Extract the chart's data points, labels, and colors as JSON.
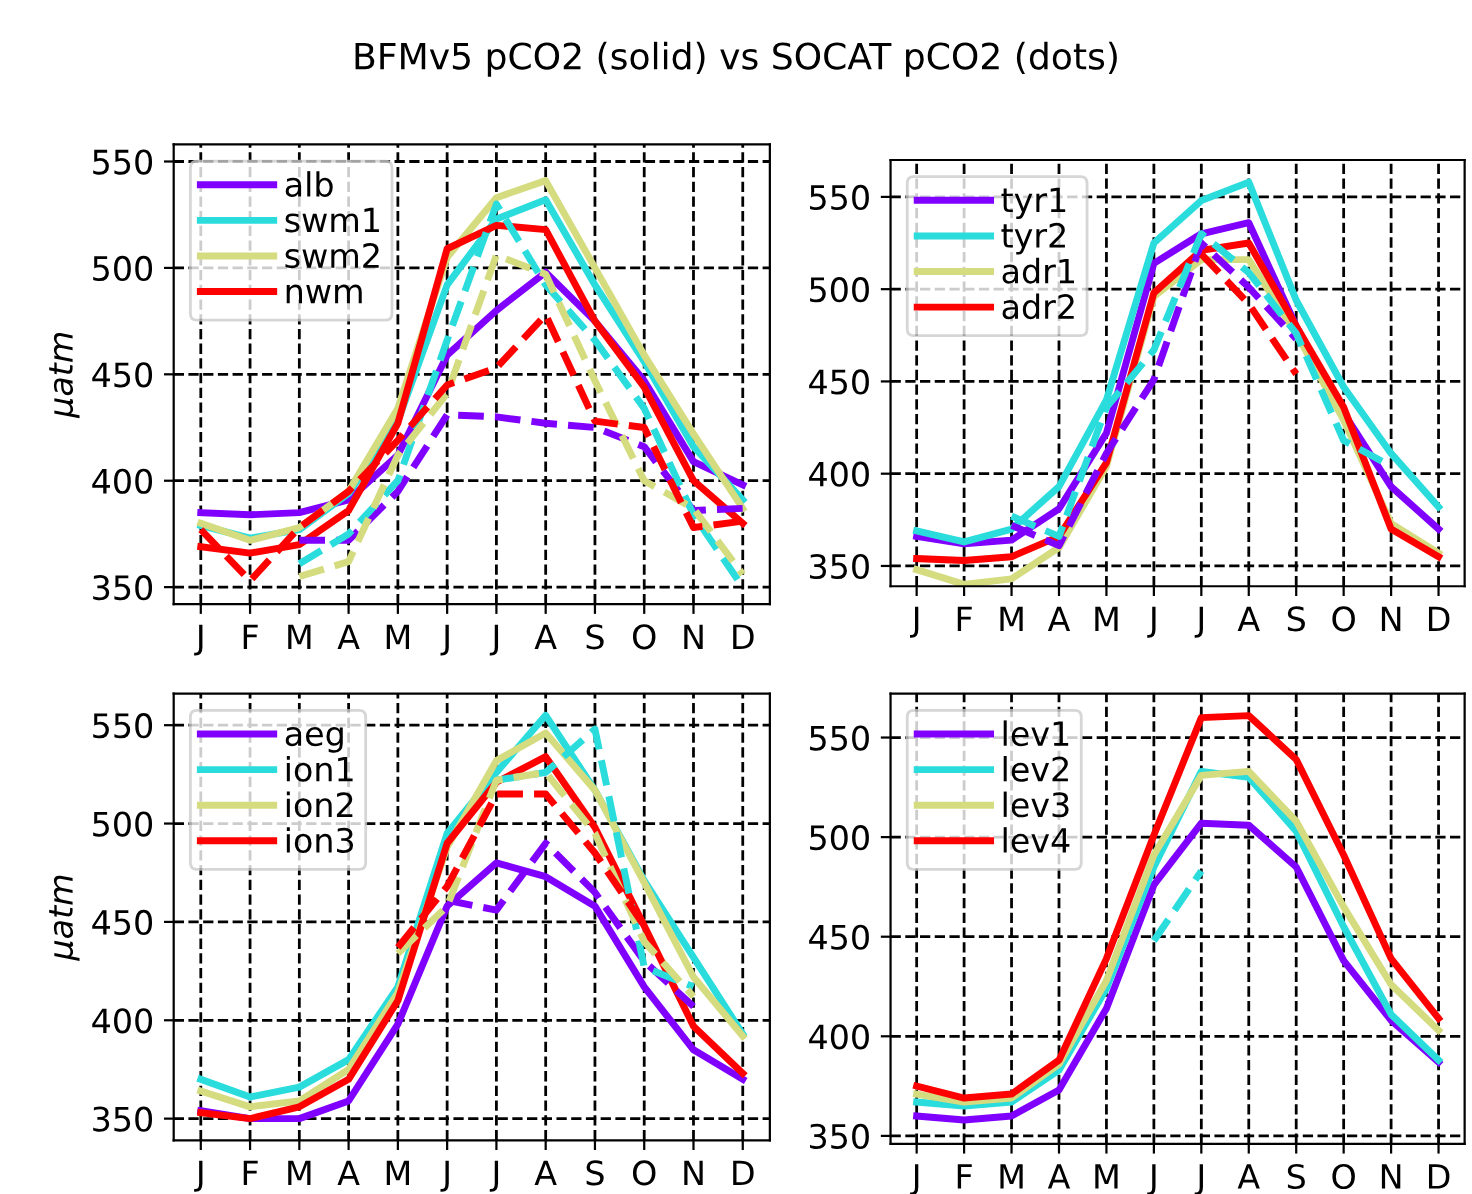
{
  "chart_data": [
    {
      "type": "line",
      "title": "BFMv5 pCO2 (solid) vs SOCAT pCO2 (dots)",
      "ylabel": "μatm",
      "categories": [
        "J",
        "F",
        "M",
        "A",
        "M",
        "J",
        "J",
        "A",
        "S",
        "O",
        "N",
        "D"
      ],
      "ylim": [
        342,
        558
      ],
      "yticks": [
        350,
        400,
        450,
        500,
        550
      ],
      "grid": true,
      "legend": "top left",
      "series": [
        {
          "name": "alb",
          "color": "#8000ff",
          "line_style": "solid",
          "values": [
            385,
            384,
            385,
            391,
            412,
            459,
            480,
            498,
            475,
            447,
            409,
            398
          ]
        },
        {
          "name": "swm1",
          "color": "#2adcdc",
          "line_style": "solid",
          "values": [
            379,
            373,
            377,
            394,
            428,
            492,
            523,
            532,
            492,
            456,
            416,
            391
          ]
        },
        {
          "name": "swm2",
          "color": "#d4dc7f",
          "line_style": "solid",
          "values": [
            380,
            372,
            378,
            395,
            434,
            505,
            533,
            541,
            500,
            459,
            422,
            387
          ]
        },
        {
          "name": "nwm",
          "color": "#ff0000",
          "line_style": "solid",
          "values": [
            369,
            366,
            370,
            386,
            427,
            509,
            520,
            518,
            475,
            444,
            400,
            380
          ]
        },
        {
          "color": "#8000ff",
          "line_style": "dashed",
          "values": [
            null,
            null,
            372,
            372,
            395,
            431,
            430,
            427,
            425,
            416,
            386,
            387
          ]
        },
        {
          "color": "#2adcdc",
          "line_style": "dashed",
          "values": [
            null,
            null,
            361,
            375,
            400,
            466,
            530,
            492,
            466,
            434,
            384,
            350
          ]
        },
        {
          "color": "#d4dc7f",
          "line_style": "dashed",
          "values": [
            null,
            null,
            355,
            362,
            412,
            441,
            506,
            497,
            447,
            400,
            387,
            356
          ]
        },
        {
          "color": "#ff0000",
          "line_style": "dashed",
          "values": [
            377,
            353,
            378,
            395,
            419,
            445,
            453,
            478,
            428,
            425,
            378,
            381
          ]
        }
      ]
    },
    {
      "type": "line",
      "categories": [
        "J",
        "F",
        "M",
        "A",
        "M",
        "J",
        "J",
        "A",
        "S",
        "O",
        "N",
        "D"
      ],
      "ylim": [
        339,
        570
      ],
      "yticks": [
        350,
        400,
        450,
        500,
        550
      ],
      "grid": true,
      "legend": "top left",
      "series": [
        {
          "name": "tyr1",
          "color": "#8000ff",
          "line_style": "solid",
          "values": [
            366,
            362,
            364,
            381,
            422,
            514,
            530,
            536,
            480,
            433,
            393,
            370
          ]
        },
        {
          "name": "tyr2",
          "color": "#2adcdc",
          "line_style": "solid",
          "values": [
            369,
            363,
            370,
            393,
            440,
            525,
            548,
            558,
            494,
            447,
            411,
            382
          ]
        },
        {
          "name": "adr1",
          "color": "#d4dc7f",
          "line_style": "solid",
          "values": [
            348,
            340,
            343,
            360,
            404,
            496,
            516,
            516,
            476,
            429,
            373,
            357
          ]
        },
        {
          "name": "adr2",
          "color": "#ff0000",
          "line_style": "solid",
          "values": [
            354,
            353,
            355,
            366,
            406,
            498,
            521,
            525,
            480,
            436,
            370,
            355
          ]
        },
        {
          "color": "#8000ff",
          "line_style": "dashed",
          "values": [
            null,
            null,
            372,
            361,
            411,
            451,
            525,
            501,
            473,
            null,
            null,
            null
          ]
        },
        {
          "color": "#2adcdc",
          "line_style": "dashed",
          "values": [
            null,
            null,
            377,
            366,
            436,
            467,
            530,
            509,
            476,
            418,
            404,
            null
          ]
        },
        {
          "color": "#ff0000",
          "line_style": "dashed",
          "values": [
            null,
            null,
            null,
            null,
            null,
            null,
            519,
            492,
            454,
            null,
            null,
            null
          ]
        }
      ]
    },
    {
      "type": "line",
      "ylabel": "μatm",
      "categories": [
        "J",
        "F",
        "M",
        "A",
        "M",
        "J",
        "J",
        "A",
        "S",
        "O",
        "N",
        "D"
      ],
      "ylim": [
        339,
        566
      ],
      "yticks": [
        350,
        400,
        450,
        500,
        550
      ],
      "grid": true,
      "legend": "top left",
      "series": [
        {
          "name": "aeg",
          "color": "#8000ff",
          "line_style": "solid",
          "values": [
            354,
            350,
            350,
            359,
            398,
            458,
            480,
            473,
            458,
            417,
            385,
            370
          ]
        },
        {
          "name": "ion1",
          "color": "#2adcdc",
          "line_style": "solid",
          "values": [
            370,
            361,
            366,
            380,
            417,
            495,
            526,
            555,
            517,
            471,
            432,
            393
          ]
        },
        {
          "name": "ion2",
          "color": "#d4dc7f",
          "line_style": "solid",
          "values": [
            364,
            356,
            359,
            375,
            414,
            488,
            532,
            546,
            517,
            470,
            422,
            392
          ]
        },
        {
          "name": "ion3",
          "color": "#ff0000",
          "line_style": "solid",
          "values": [
            353,
            350,
            356,
            370,
            410,
            490,
            521,
            534,
            498,
            448,
            397,
            373
          ]
        },
        {
          "color": "#8000ff",
          "line_style": "dashed",
          "values": [
            null,
            null,
            null,
            null,
            null,
            461,
            456,
            490,
            465,
            430,
            407,
            null
          ]
        },
        {
          "color": "#2adcdc",
          "line_style": "dashed",
          "values": [
            null,
            null,
            null,
            null,
            null,
            null,
            522,
            526,
            548,
            427,
            417,
            null
          ]
        },
        {
          "color": "#d4dc7f",
          "line_style": "dashed",
          "values": [
            null,
            null,
            null,
            null,
            434,
            458,
            522,
            526,
            495,
            440,
            412,
            null
          ]
        },
        {
          "color": "#ff0000",
          "line_style": "dashed",
          "values": [
            null,
            null,
            null,
            null,
            437,
            468,
            515,
            515,
            485,
            448,
            null,
            null
          ]
        }
      ]
    },
    {
      "type": "line",
      "categories": [
        "J",
        "F",
        "M",
        "A",
        "M",
        "J",
        "J",
        "A",
        "S",
        "O",
        "N",
        "D"
      ],
      "ylim": [
        346,
        572
      ],
      "yticks": [
        350,
        400,
        450,
        500,
        550
      ],
      "grid": true,
      "legend": "top left",
      "series": [
        {
          "name": "lev1",
          "color": "#8000ff",
          "line_style": "solid",
          "values": [
            360,
            358,
            360,
            373,
            414,
            476,
            507,
            506,
            485,
            438,
            408,
            387
          ]
        },
        {
          "name": "lev2",
          "color": "#2adcdc",
          "line_style": "solid",
          "values": [
            367,
            365,
            367,
            383,
            424,
            485,
            533,
            530,
            503,
            455,
            411,
            388
          ]
        },
        {
          "name": "lev3",
          "color": "#d4dc7f",
          "line_style": "solid",
          "values": [
            371,
            367,
            369,
            386,
            428,
            491,
            531,
            533,
            508,
            465,
            426,
            403
          ]
        },
        {
          "name": "lev4",
          "color": "#ff0000",
          "line_style": "solid",
          "values": [
            375,
            369,
            371,
            388,
            439,
            501,
            560,
            561,
            539,
            491,
            439,
            409
          ]
        },
        {
          "color": "#2adcdc",
          "line_style": "dashed",
          "values": [
            null,
            null,
            null,
            null,
            null,
            448,
            483,
            null,
            null,
            null,
            null,
            null
          ]
        }
      ]
    }
  ]
}
